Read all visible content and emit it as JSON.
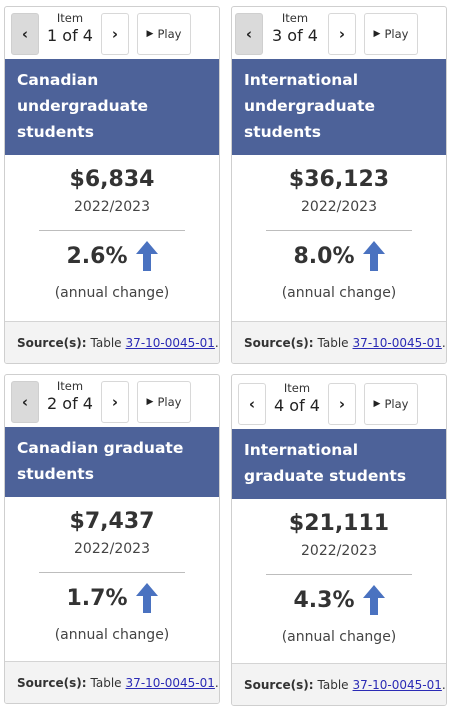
{
  "controls": {
    "item_label": "Item",
    "play_label": "Play",
    "prev_glyph": "‹",
    "next_glyph": "›",
    "play_glyph": "▶"
  },
  "cards": [
    {
      "counter": "1 of 4",
      "title": "Canadian undergraduate students",
      "amount": "$6,834",
      "year": "2022/2023",
      "change": "2.6%",
      "change_note": "(annual change)",
      "source_label": "Source(s):",
      "source_prefix": "Table",
      "source_link": "37-10-0045-01",
      "source_suffix": ".",
      "prev_disabled": true
    },
    {
      "counter": "3 of 4",
      "title": "International undergraduate students",
      "amount": "$36,123",
      "year": "2022/2023",
      "change": "8.0%",
      "change_note": "(annual change)",
      "source_label": "Source(s):",
      "source_prefix": "Table",
      "source_link": "37-10-0045-01",
      "source_suffix": ".",
      "prev_disabled": true
    },
    {
      "counter": "2 of 4",
      "title": "Canadian graduate students",
      "amount": "$7,437",
      "year": "2022/2023",
      "change": "1.7%",
      "change_note": "(annual change)",
      "source_label": "Source(s):",
      "source_prefix": "Table",
      "source_link": "37-10-0045-01",
      "source_suffix": ".",
      "prev_disabled": true
    },
    {
      "counter": "4 of 4",
      "title": "International graduate students",
      "amount": "$21,111",
      "year": "2022/2023",
      "change": "4.3%",
      "change_note": "(annual change)",
      "source_label": "Source(s):",
      "source_prefix": "Table",
      "source_link": "37-10-0045-01",
      "source_suffix": ".",
      "prev_disabled": false
    }
  ],
  "colors": {
    "header": "#4d6299",
    "arrow": "#4a72c0",
    "link": "#2b2bb5"
  }
}
